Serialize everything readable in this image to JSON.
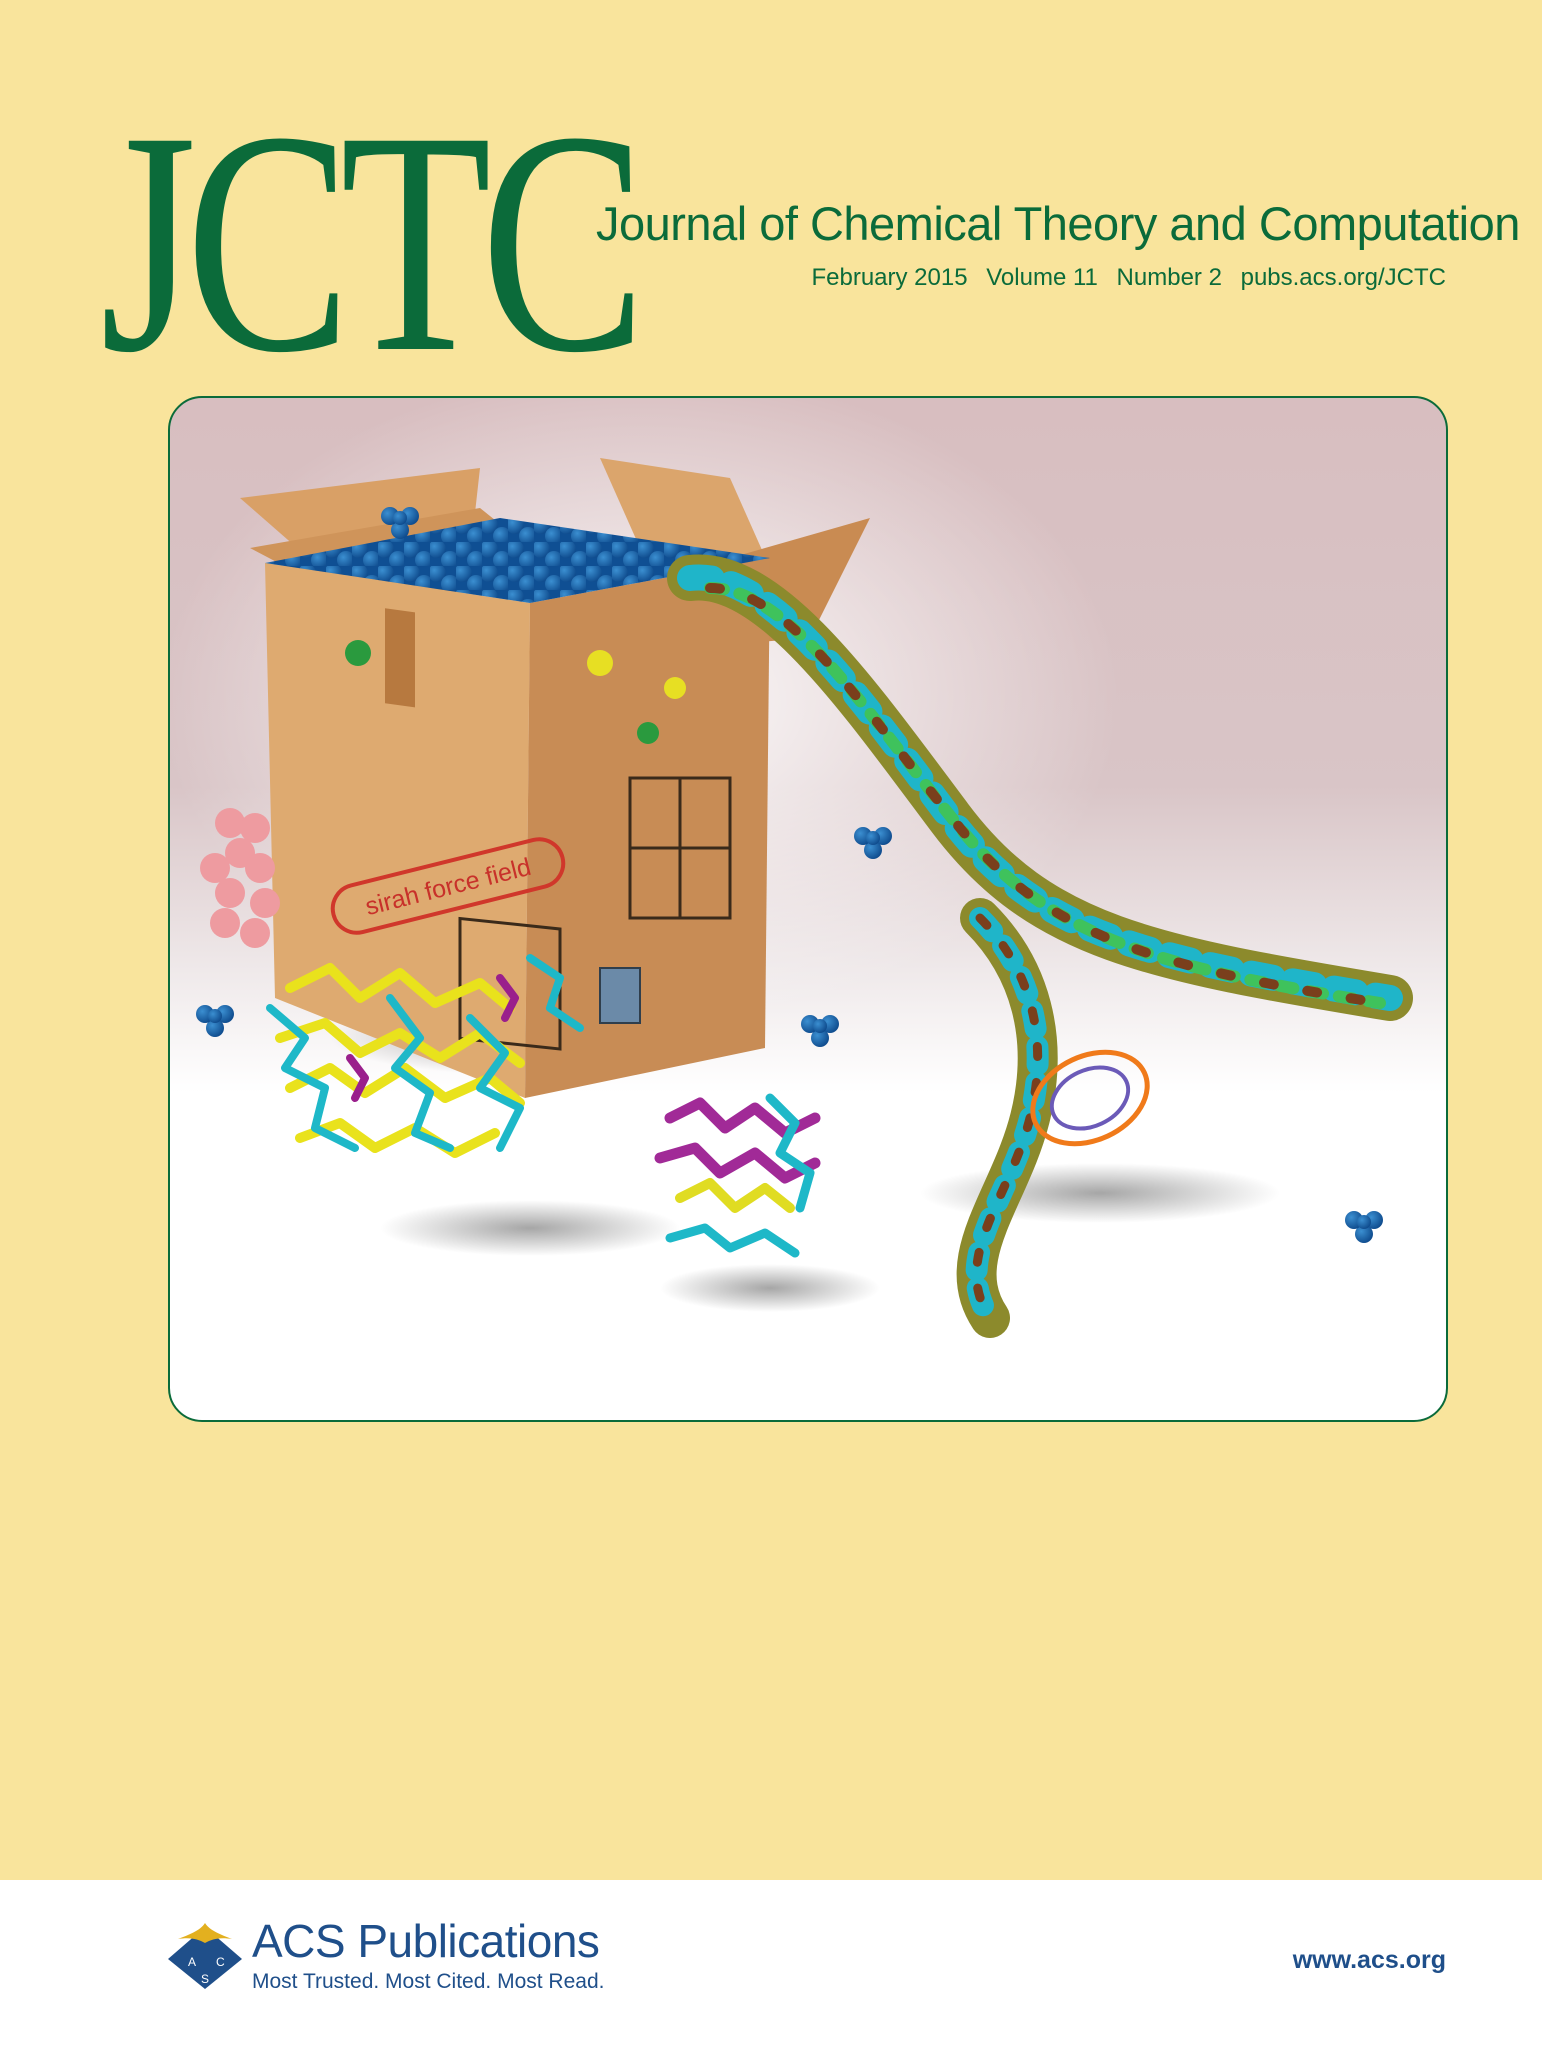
{
  "masthead": {
    "logo": "JCTC",
    "journal_title": "Journal of Chemical Theory and Computation",
    "issue": {
      "date": "February 2015",
      "volume": "Volume 11",
      "number": "Number 2",
      "url": "pubs.acs.org/JCTC"
    }
  },
  "cover_art": {
    "box_stamp": "sirah force field"
  },
  "footer": {
    "publisher_name": "ACS Publications",
    "tagline": "Most Trusted. Most Cited. Most Read.",
    "emblem_letters": [
      "A",
      "C",
      "S"
    ],
    "website": "www.acs.org"
  },
  "colors": {
    "background": "#f9e49c",
    "brand_green": "#0b6b3a",
    "acs_blue": "#1f4f8a",
    "acs_gold": "#e3b01f"
  }
}
